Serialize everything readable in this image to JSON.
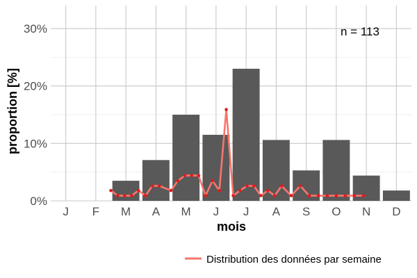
{
  "chart_data": {
    "type": "bar",
    "categories": [
      "J",
      "F",
      "M",
      "A",
      "M",
      "J",
      "J",
      "A",
      "S",
      "O",
      "N",
      "D"
    ],
    "values": [
      0,
      0,
      3.5,
      7.1,
      15.0,
      11.5,
      23.0,
      10.6,
      5.3,
      10.6,
      4.4,
      1.8
    ],
    "xlabel": "mois",
    "ylabel": "proportion [%]",
    "ylim": [
      0,
      34
    ],
    "yticks": [
      0,
      10,
      20,
      30
    ],
    "ytick_labels": [
      "0%",
      "10%",
      "20%",
      "30%"
    ],
    "annotation": "n = 113",
    "grid": true,
    "legend_position": "bottom-right",
    "bar_color": "#595959",
    "line_color": "#f8766d",
    "point_color": "#e41a1c",
    "series": [
      {
        "name": "Distribution des données par semaine",
        "type": "line",
        "x": [
          2.0,
          2.23,
          2.46,
          2.69,
          2.92,
          3.15,
          3.38,
          3.61,
          4.0,
          4.23,
          4.46,
          4.69,
          4.92,
          5.15,
          5.38,
          5.61,
          5.84,
          6.07,
          6.3,
          6.53,
          6.76,
          6.99,
          7.22,
          7.45,
          7.68,
          8.0,
          8.3,
          8.6,
          8.9,
          9.2,
          9.5,
          9.8,
          10.1,
          10.4
        ],
        "y": [
          1.8,
          0.9,
          0.9,
          0.9,
          1.8,
          0.9,
          2.6,
          2.6,
          1.8,
          3.5,
          4.4,
          4.4,
          4.4,
          0.9,
          3.5,
          1.8,
          15.9,
          0.9,
          1.8,
          2.6,
          2.6,
          0.9,
          1.8,
          0.9,
          2.6,
          0.9,
          2.6,
          0.9,
          0.9,
          0.9,
          0.9,
          0.9,
          0.9,
          0.9
        ]
      }
    ]
  }
}
